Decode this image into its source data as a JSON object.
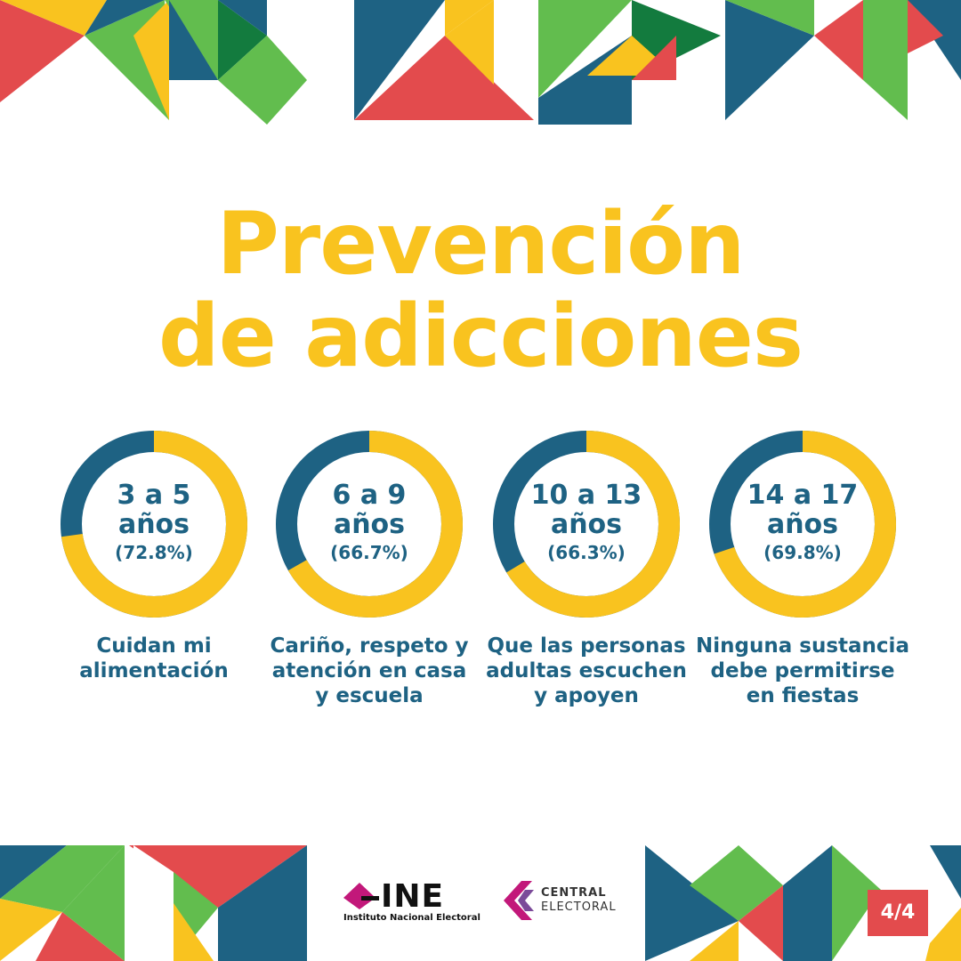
{
  "title": {
    "line1": "Prevención",
    "line2": "de adicciones"
  },
  "colors": {
    "title": "#f9c31f",
    "ring_value": "#f9c31f",
    "ring_rest": "#1e6283",
    "text_blue": "#1e6283",
    "badge": "#e34b4d",
    "deco_red": "#e34b4d",
    "deco_blue": "#1e6283",
    "deco_green": "#62bd4e",
    "deco_dark_green": "#137b3e",
    "deco_yellow": "#f9c31f",
    "brand_magenta": "#c2187a"
  },
  "chart_data": {
    "type": "donut",
    "series": [
      {
        "age": "3 a 5",
        "unit": "años",
        "label": "(72.8%)",
        "value": 72.8,
        "caption": "Cuidan mi alimentación"
      },
      {
        "age": "6 a 9",
        "unit": "años",
        "label": "(66.7%)",
        "value": 66.7,
        "caption": "Cariño, respeto y atención en casa y escuela"
      },
      {
        "age": "10 a 13",
        "unit": "años",
        "label": "(66.3%)",
        "value": 66.3,
        "caption": "Que las personas adultas escuchen y apoyen"
      },
      {
        "age": "14 a 17",
        "unit": "años",
        "label": "(69.8%)",
        "value": 69.8,
        "caption": "Ninguna sustancia debe permitirse en fiestas"
      }
    ]
  },
  "footer": {
    "ine": {
      "word": "INE",
      "subtitle": "Instituto Nacional Electoral"
    },
    "central_electoral": {
      "line1": "CENTRAL",
      "line2": "ELECTORAL"
    },
    "page_indicator": "4/4"
  }
}
